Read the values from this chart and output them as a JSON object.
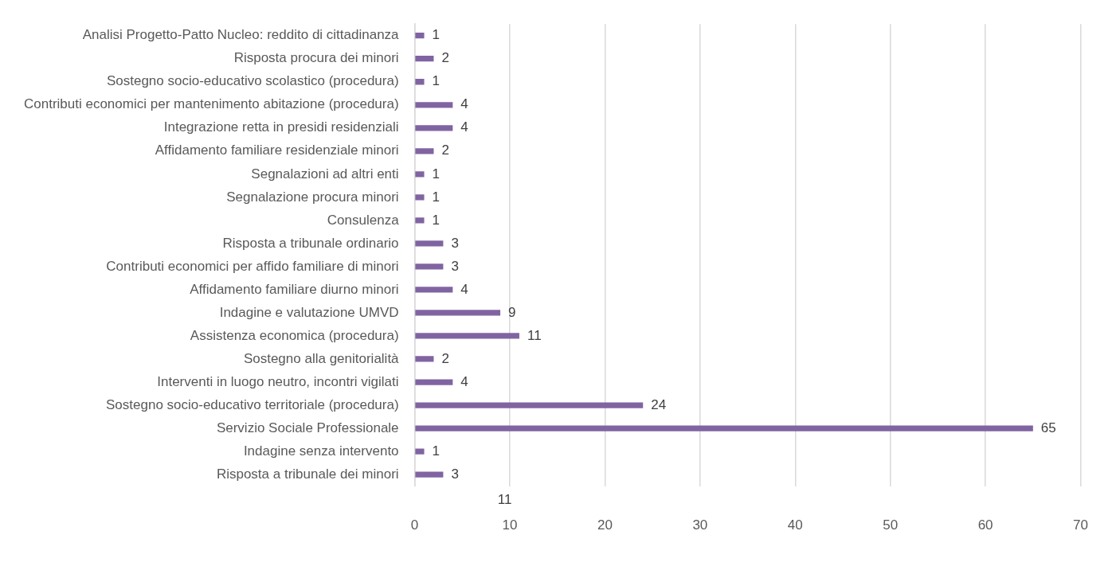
{
  "chart_data": {
    "type": "bar",
    "orientation": "horizontal",
    "categories": [
      "Analisi Progetto-Patto Nucleo: reddito di cittadinanza",
      "Risposta procura dei minori",
      "Sostegno socio-educativo scolastico (procedura)",
      "Contributi economici per mantenimento abitazione (procedura)",
      "Integrazione retta in presidi residenziali",
      "Affidamento familiare residenziale minori",
      "Segnalazioni ad altri enti",
      "Segnalazione procura minori",
      "Consulenza",
      "Risposta a tribunale ordinario",
      "Contributi economici per affido familiare di minori",
      "Affidamento familiare diurno minori",
      "Indagine e valutazione UMVD",
      "Assistenza economica (procedura)",
      "Sostegno alla genitorialità",
      "Interventi in luogo neutro, incontri vigilati",
      "Sostegno socio-educativo territoriale (procedura)",
      "Servizio Sociale Professionale",
      "Indagine senza intervento",
      "Risposta a tribunale dei minori"
    ],
    "values": [
      1,
      2,
      1,
      4,
      4,
      2,
      1,
      1,
      1,
      3,
      3,
      4,
      9,
      11,
      2,
      4,
      24,
      65,
      1,
      3
    ],
    "color": "#8064a2",
    "xlim": [
      0,
      70
    ],
    "xticks": [
      0,
      10,
      20,
      30,
      40,
      50,
      60,
      70
    ],
    "grid": "x",
    "legend": false,
    "data_labels": true,
    "annotations": [
      "11"
    ]
  }
}
